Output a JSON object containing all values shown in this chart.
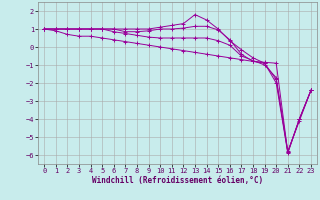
{
  "xlabel": "Windchill (Refroidissement éolien,°C)",
  "bg_color": "#c8ecec",
  "line_color": "#990099",
  "grid_color": "#aaaaaa",
  "xlim": [
    -0.5,
    23.5
  ],
  "ylim": [
    -6.5,
    2.5
  ],
  "yticks": [
    2,
    1,
    0,
    -1,
    -2,
    -3,
    -4,
    -5,
    -6
  ],
  "xticks": [
    0,
    1,
    2,
    3,
    4,
    5,
    6,
    7,
    8,
    9,
    10,
    11,
    12,
    13,
    14,
    15,
    16,
    17,
    18,
    19,
    20,
    21,
    22,
    23
  ],
  "series": [
    [
      1.0,
      0.9,
      0.7,
      0.6,
      0.6,
      0.5,
      0.4,
      0.3,
      0.2,
      0.1,
      0.0,
      -0.1,
      -0.2,
      -0.3,
      -0.4,
      -0.5,
      -0.6,
      -0.7,
      -0.8,
      -0.9,
      -1.8,
      -5.8,
      -4.1,
      -2.4
    ],
    [
      1.0,
      1.0,
      1.0,
      1.0,
      1.0,
      1.0,
      1.0,
      1.0,
      1.0,
      1.0,
      1.1,
      1.2,
      1.3,
      1.8,
      1.5,
      1.0,
      0.35,
      -0.15,
      -0.6,
      -0.9,
      -2.0,
      -5.9,
      -4.0,
      -2.4
    ],
    [
      1.0,
      1.0,
      1.0,
      1.0,
      1.0,
      1.0,
      1.0,
      0.85,
      0.85,
      0.9,
      1.0,
      1.0,
      1.05,
      1.15,
      1.15,
      0.95,
      0.4,
      -0.4,
      -0.8,
      -0.85,
      -0.9,
      -5.85,
      -4.0,
      -2.4
    ],
    [
      1.0,
      1.0,
      1.0,
      1.0,
      1.0,
      1.0,
      0.85,
      0.75,
      0.65,
      0.55,
      0.5,
      0.5,
      0.5,
      0.5,
      0.5,
      0.35,
      0.1,
      -0.5,
      -0.75,
      -1.0,
      -1.7,
      -5.85,
      -4.0,
      -2.4
    ]
  ],
  "label_fontsize": 5.0,
  "xlabel_fontsize": 5.5
}
